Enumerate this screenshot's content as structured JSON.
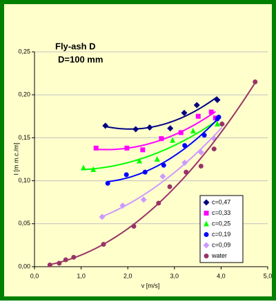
{
  "chart_data": {
    "type": "scatter",
    "title": "Fly-ash D",
    "subtitle": "D=100 mm",
    "x_label": "v [m/s]",
    "y_label": "I [m m.c./m]",
    "xlim": [
      0,
      5
    ],
    "ylim": [
      0,
      0.25
    ],
    "xticks": [
      {
        "value": 0,
        "label": "0,0"
      },
      {
        "value": 1,
        "label": "1,0"
      },
      {
        "value": 2,
        "label": "2,0"
      },
      {
        "value": 3,
        "label": "3,0"
      },
      {
        "value": 4,
        "label": "4,0"
      },
      {
        "value": 5,
        "label": "5,0"
      }
    ],
    "yticks": [
      {
        "value": 0,
        "label": "0,00"
      },
      {
        "value": 0.05,
        "label": "0,05"
      },
      {
        "value": 0.1,
        "label": "0,10"
      },
      {
        "value": 0.15,
        "label": "0,15"
      },
      {
        "value": 0.2,
        "label": "0,20"
      },
      {
        "value": 0.25,
        "label": "0,25"
      }
    ],
    "grid": true,
    "trendline": true,
    "legend": "lower right",
    "series": [
      {
        "name": "c=0,47",
        "color": "#000080",
        "marker": "diamond",
        "x": [
          1.52,
          2.17,
          2.47,
          2.91,
          3.21,
          3.48,
          3.92
        ],
        "values": [
          0.164,
          0.16,
          0.162,
          0.161,
          0.179,
          0.188,
          0.194
        ]
      },
      {
        "name": "c=0,33",
        "color": "#ff00ff",
        "marker": "square",
        "x": [
          1.32,
          1.98,
          2.32,
          2.72,
          3.14,
          3.51,
          3.79,
          3.88
        ],
        "values": [
          0.138,
          0.138,
          0.136,
          0.149,
          0.156,
          0.175,
          0.18,
          0.173
        ]
      },
      {
        "name": "c=0,25",
        "color": "#00ff00",
        "marker": "triangle",
        "x": [
          1.05,
          1.26,
          2.25,
          2.63,
          2.96,
          3.4,
          3.92
        ],
        "values": [
          0.115,
          0.113,
          0.123,
          0.125,
          0.147,
          0.158,
          0.166
        ]
      },
      {
        "name": "c=0,19",
        "color": "#0000ff",
        "marker": "circle",
        "x": [
          1.57,
          1.97,
          2.37,
          2.77,
          3.22,
          3.64,
          3.92,
          3.95
        ],
        "values": [
          0.097,
          0.107,
          0.11,
          0.118,
          0.141,
          0.153,
          0.172,
          0.174
        ]
      },
      {
        "name": "c=0,09",
        "color": "#cc99ff",
        "marker": "diamond",
        "x": [
          1.45,
          1.89,
          2.34,
          2.75,
          3.22,
          3.57,
          3.85,
          4.02
        ],
        "values": [
          0.058,
          0.071,
          0.078,
          0.105,
          0.121,
          0.133,
          0.149,
          0.166
        ]
      },
      {
        "name": "water",
        "color": "#993366",
        "marker": "circle",
        "x": [
          0.33,
          0.53,
          0.67,
          0.84,
          1.48,
          2.13,
          2.66,
          2.9,
          3.25,
          3.57,
          3.85,
          4.02,
          4.73
        ],
        "values": [
          0.002,
          0.004,
          0.008,
          0.011,
          0.026,
          0.047,
          0.074,
          0.093,
          0.11,
          0.117,
          0.137,
          0.166,
          0.215
        ]
      }
    ]
  }
}
